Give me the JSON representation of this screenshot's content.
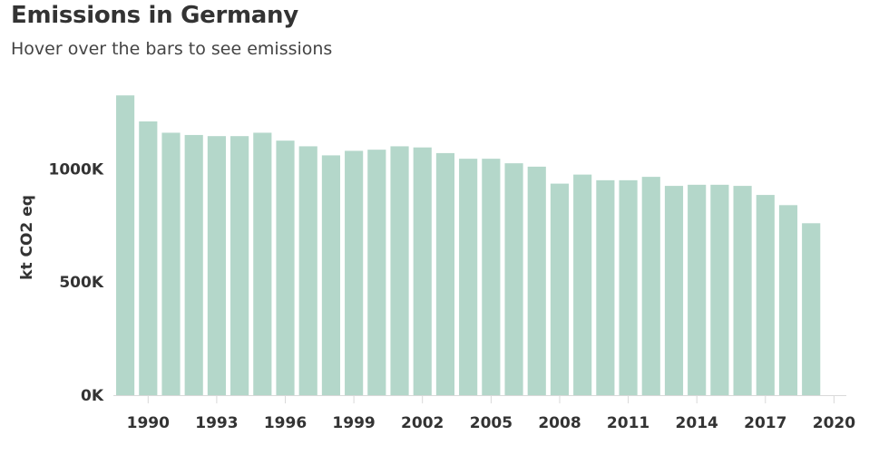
{
  "header": {
    "title": "Emissions in Germany",
    "subtitle": "Hover over the bars to see emissions"
  },
  "chart_data": {
    "type": "bar",
    "title": "Emissions in Germany",
    "subtitle": "Hover over the bars to see emissions",
    "xlabel": "",
    "ylabel": "kt CO2 eq",
    "ylim": [
      0,
      1330000
    ],
    "yticks": [
      0,
      500000,
      1000000
    ],
    "ytick_labels": [
      "0K",
      "500K",
      "1000K"
    ],
    "grid": false,
    "bar_color": "#b4d7ca",
    "categories": [
      1989,
      1990,
      1991,
      1992,
      1993,
      1994,
      1995,
      1996,
      1997,
      1998,
      1999,
      2000,
      2001,
      2002,
      2003,
      2004,
      2005,
      2006,
      2007,
      2008,
      2009,
      2010,
      2011,
      2012,
      2013,
      2014,
      2015,
      2016,
      2017,
      2018,
      2019,
      2020
    ],
    "xtick_labels": [
      "1990",
      "1993",
      "1996",
      "1999",
      "2002",
      "2005",
      "2008",
      "2011",
      "2014",
      "2017",
      "2020"
    ],
    "values": [
      1325000,
      1210000,
      1160000,
      1150000,
      1145000,
      1145000,
      1160000,
      1125000,
      1100000,
      1060000,
      1080000,
      1085000,
      1100000,
      1095000,
      1070000,
      1045000,
      1045000,
      1025000,
      1010000,
      935000,
      975000,
      950000,
      950000,
      965000,
      925000,
      930000,
      930000,
      925000,
      885000,
      840000,
      760000,
      0
    ]
  }
}
